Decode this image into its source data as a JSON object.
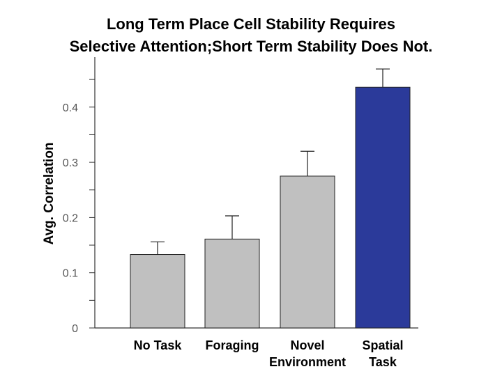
{
  "chart_data": {
    "type": "bar",
    "title": [
      "Long Term Place Cell Stability Requires",
      "Selective Attention;Short Term Stability Does Not."
    ],
    "xlabel": "",
    "ylabel": "Avg. Correlation",
    "ylim": [
      0,
      0.5
    ],
    "yticks": [
      0,
      0.1,
      0.2,
      0.3,
      0.4
    ],
    "ytick_labels": [
      "0",
      "0.1",
      "0.2",
      "0.3",
      "0.4"
    ],
    "categories": [
      [
        "No Task"
      ],
      [
        "Foraging"
      ],
      [
        "Novel",
        "Environment"
      ],
      [
        "Spatial",
        "Task"
      ]
    ],
    "values": [
      0.133,
      0.161,
      0.275,
      0.436
    ],
    "errors": [
      0.023,
      0.042,
      0.045,
      0.033
    ],
    "colors": [
      "#c0c0c0",
      "#c0c0c0",
      "#c0c0c0",
      "#2b3a9a"
    ],
    "grid": false,
    "legend": "none"
  }
}
